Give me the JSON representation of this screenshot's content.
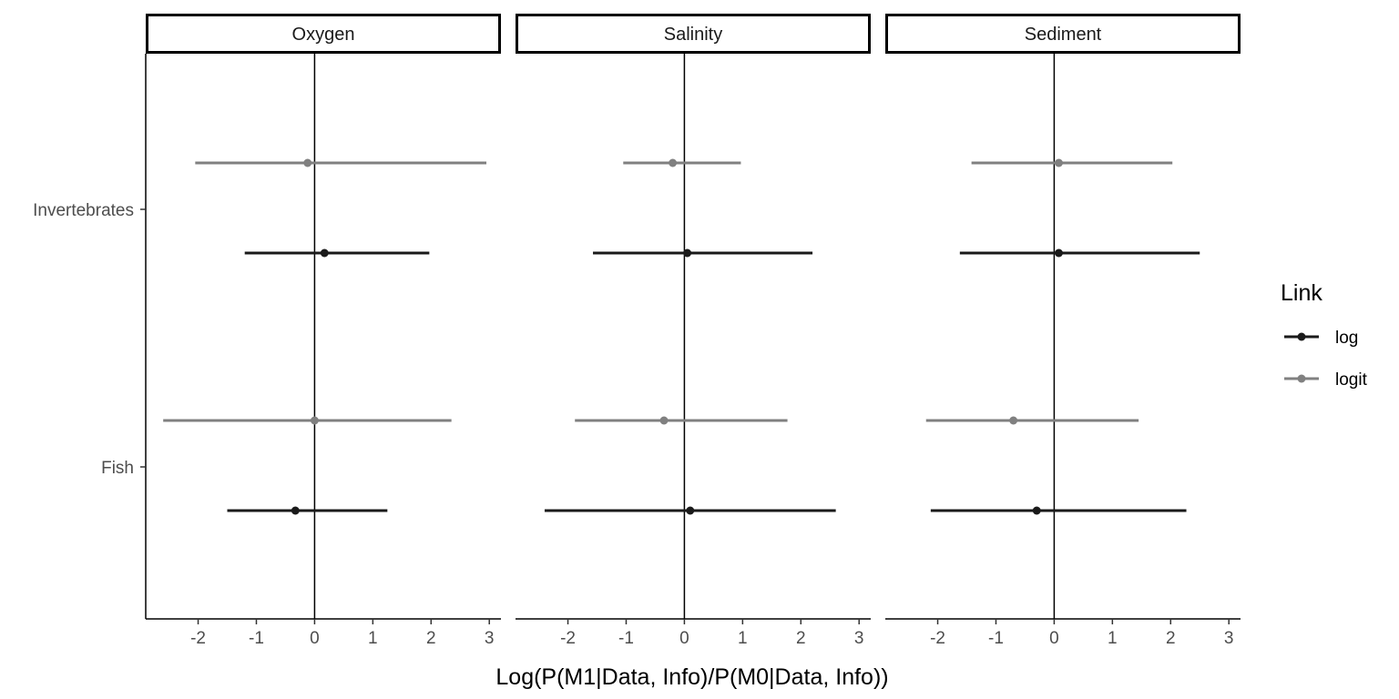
{
  "chart_data": {
    "type": "scatter",
    "subtype": "forest-plot-with-intervals",
    "xlabel": "Log(P(M1|Data, Info)/P(M0|Data, Info))",
    "ylabel": "",
    "xlim": [
      -2.9,
      3.2
    ],
    "xticks": [
      "-2",
      "-1",
      "0",
      "1",
      "2",
      "3"
    ],
    "categories": [
      "Invertebrates",
      "Fish"
    ],
    "legend": {
      "title": "Link",
      "position": "right"
    },
    "reference_line_x": 0,
    "grid": false,
    "series": [
      {
        "name": "log",
        "color": "#1a1a1a"
      },
      {
        "name": "logit",
        "color": "#808080"
      }
    ],
    "facets": [
      {
        "label": "Oxygen",
        "points": [
          {
            "category": "Invertebrates",
            "series": "logit",
            "x": -0.12,
            "lo": -2.05,
            "hi": 2.95
          },
          {
            "category": "Invertebrates",
            "series": "log",
            "x": 0.17,
            "lo": -1.2,
            "hi": 1.97
          },
          {
            "category": "Fish",
            "series": "logit",
            "x": 0.0,
            "lo": -2.6,
            "hi": 2.35
          },
          {
            "category": "Fish",
            "series": "log",
            "x": -0.33,
            "lo": -1.5,
            "hi": 1.25
          }
        ]
      },
      {
        "label": "Salinity",
        "points": [
          {
            "category": "Invertebrates",
            "series": "logit",
            "x": -0.2,
            "lo": -1.05,
            "hi": 0.97
          },
          {
            "category": "Invertebrates",
            "series": "log",
            "x": 0.05,
            "lo": -1.57,
            "hi": 2.2
          },
          {
            "category": "Fish",
            "series": "logit",
            "x": -0.35,
            "lo": -1.88,
            "hi": 1.77
          },
          {
            "category": "Fish",
            "series": "log",
            "x": 0.1,
            "lo": -2.4,
            "hi": 2.6
          }
        ]
      },
      {
        "label": "Sediment",
        "points": [
          {
            "category": "Invertebrates",
            "series": "logit",
            "x": 0.08,
            "lo": -1.42,
            "hi": 2.03
          },
          {
            "category": "Invertebrates",
            "series": "log",
            "x": 0.08,
            "lo": -1.62,
            "hi": 2.5
          },
          {
            "category": "Fish",
            "series": "logit",
            "x": -0.7,
            "lo": -2.2,
            "hi": 1.45
          },
          {
            "category": "Fish",
            "series": "log",
            "x": -0.3,
            "lo": -2.12,
            "hi": 2.27
          }
        ]
      }
    ]
  }
}
